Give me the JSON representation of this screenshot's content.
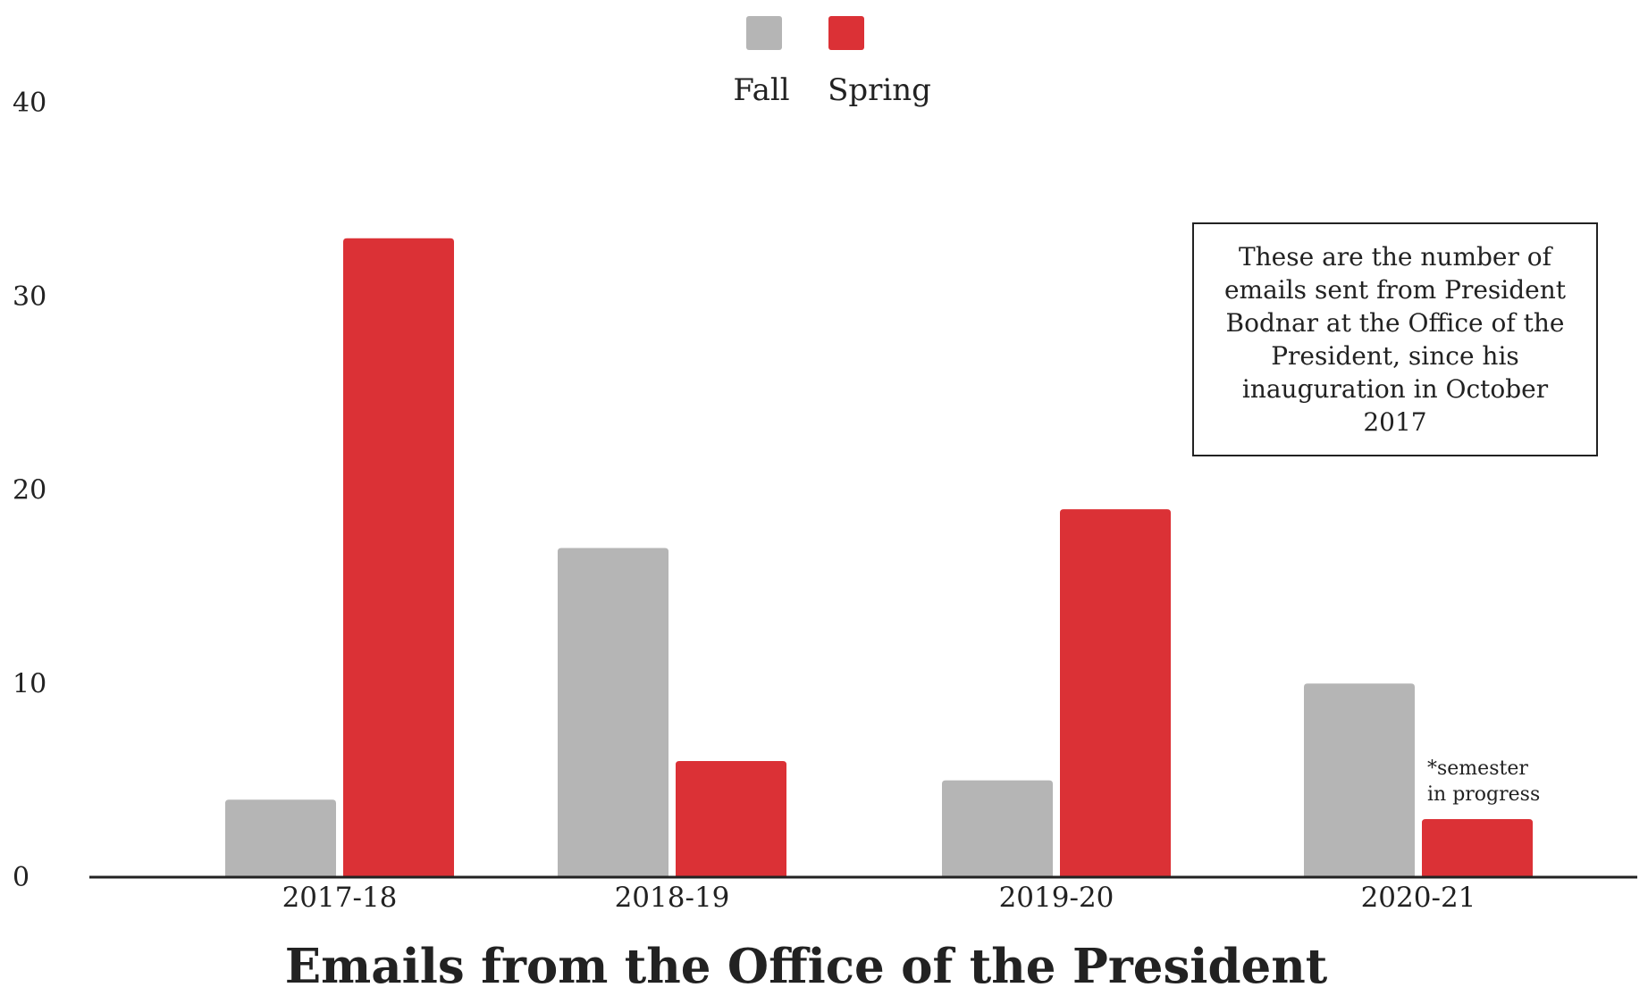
{
  "chart_data": {
    "type": "bar",
    "title": "Emails from the Office of the President",
    "xlabel": "",
    "ylabel": "",
    "categories": [
      "2017-18",
      "2018-19",
      "2019-20",
      "2020-21"
    ],
    "series": [
      {
        "name": "Fall",
        "color": "#b5b5b5",
        "values": [
          4,
          17,
          5,
          10
        ]
      },
      {
        "name": "Spring",
        "color": "#db3136",
        "values": [
          33,
          6,
          19,
          3
        ]
      }
    ],
    "ylim": [
      0,
      40
    ],
    "yticks": [
      0,
      10,
      20,
      30,
      40
    ],
    "ytick_labels": [
      "0",
      "10",
      "20",
      "30",
      "40"
    ],
    "grid": false,
    "legend_position": "top-center",
    "annotation": "These are the number of emails sent from President Bodnar at the Office of the President, since his inauguration in October 2017",
    "bar_notes": [
      {
        "series": "Spring",
        "category": "2020-21",
        "lines": [
          "*semester",
          "in progress"
        ]
      }
    ]
  }
}
